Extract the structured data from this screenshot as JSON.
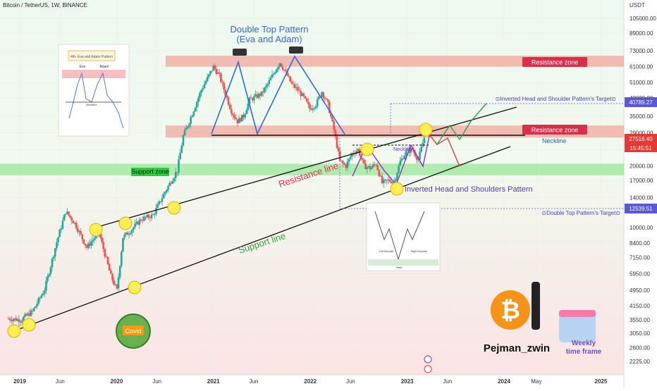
{
  "header": {
    "symbol": "Bitcoin / TetherUS, 1W, BINANCE",
    "currency": "USDT"
  },
  "chart_data": {
    "type": "candlestick",
    "symbol": "Bitcoin / TetherUS",
    "interval": "1W",
    "exchange": "BINANCE",
    "scale": "log",
    "x_ticks": [
      "2019",
      "Jun",
      "2020",
      "Jun",
      "2021",
      "Jun",
      "2022",
      "Jun",
      "2023",
      "Jun",
      "2024",
      "May",
      "2025"
    ],
    "y_ticks": [
      105000,
      89000,
      73000,
      61000,
      51000,
      43000,
      35000,
      29000,
      24000,
      20000,
      17000,
      14000,
      12000,
      10000,
      8400,
      7150,
      5950,
      4950,
      4150,
      3550,
      3050,
      2600,
      2225
    ],
    "price_labels": [
      {
        "text": "40789.27",
        "kind": "target_up",
        "color": "#5b57d6"
      },
      {
        "text": "27516.40",
        "kind": "current",
        "color": "#e53935"
      },
      {
        "text": "15:45:51",
        "kind": "countdown",
        "color": "#e53935"
      },
      {
        "text": "12539.51",
        "kind": "target_down",
        "color": "#5b57d6"
      }
    ],
    "zones": [
      {
        "label": "Resistance zone",
        "from": 61000,
        "to": 69000,
        "color": "#f08a80"
      },
      {
        "label": "Resistance zone",
        "from": 27500,
        "to": 31500,
        "color": "#f08a80"
      },
      {
        "label": "Support zone",
        "from": 18000,
        "to": 20500,
        "color": "#7de07d"
      }
    ],
    "annotations": {
      "double_top_title": "Double Top Pattern",
      "double_top_subtitle": "(Eva and Adam)",
      "resistance_line": "Resistance line",
      "support_line": "Support line",
      "neckline_main": "Neckline",
      "neckline_small": "Neckline",
      "ihs_pattern": "Inverted Head and Shoulders Pattern",
      "ihs_target": "Inverted Head and Shoulder Pattern's Target",
      "dt_target": "Double Top Pattern's Target",
      "covid": "Covid",
      "inset_title": "4th- Eva and Adam Pattern",
      "inset_eve": "Eve",
      "inset_adam": "Adam",
      "inset_neckline": "Neckline",
      "inset2_left": "Left Shoulder",
      "inset2_right": "Right Shoulder",
      "inset2_head": "Head",
      "author": "Pejman_zwin",
      "timeframe_line1": "Weekly",
      "timeframe_line2": "time frame"
    }
  }
}
